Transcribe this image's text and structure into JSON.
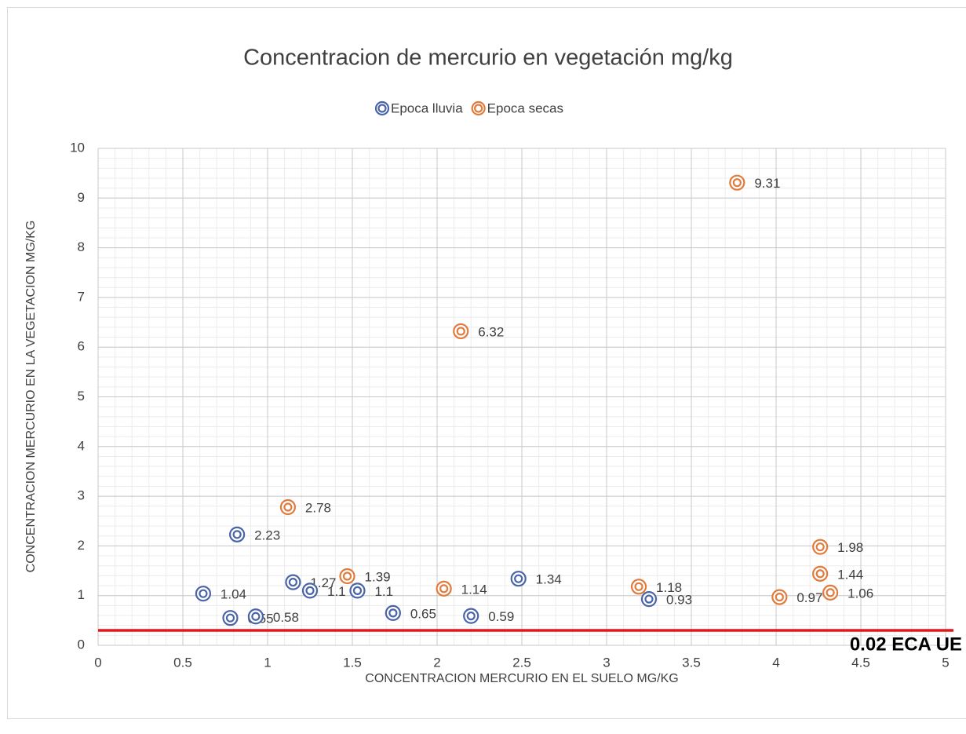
{
  "chart_data": {
    "type": "scatter",
    "title": "Concentracion de mercurio en vegetación mg/kg",
    "x_label": "CONCENTRACION MERCURIO EN EL SUELO MG/KG",
    "y_label": "CONCENTRACION MERCURIO EN LA VEGETACION MG/KG",
    "legend_position": "top",
    "grid": true,
    "xminor": 0.1,
    "yminor": 0.2,
    "xlim": [
      0,
      5
    ],
    "ylim": [
      0,
      10
    ],
    "xticks": [
      0,
      0.5,
      1,
      1.5,
      2,
      2.5,
      3,
      3.5,
      4,
      4.5,
      5
    ],
    "yticks": [
      0,
      1,
      2,
      3,
      4,
      5,
      6,
      7,
      8,
      9,
      10
    ],
    "series": [
      {
        "name": "Epoca lluvia",
        "color": "#4a64a8",
        "x": [
          0.62,
          0.82,
          1.15,
          1.25,
          1.53,
          0.78,
          0.93,
          1.74,
          2.2,
          2.48,
          3.25
        ],
        "values": [
          1.04,
          2.23,
          1.27,
          1.1,
          1.1,
          0.55,
          0.58,
          0.65,
          0.59,
          1.34,
          0.93
        ]
      },
      {
        "name": "Epoca secas",
        "color": "#e07b3c",
        "x": [
          1.12,
          1.47,
          2.04,
          2.14,
          3.77,
          3.19,
          4.02,
          4.26,
          4.26,
          4.32
        ],
        "values": [
          2.78,
          1.39,
          1.14,
          6.32,
          9.31,
          1.18,
          0.97,
          1.98,
          1.44,
          1.06
        ]
      }
    ],
    "reference_line": {
      "value": 0.3,
      "color": "#e8141b",
      "label": "0.02 ECA UE"
    }
  }
}
